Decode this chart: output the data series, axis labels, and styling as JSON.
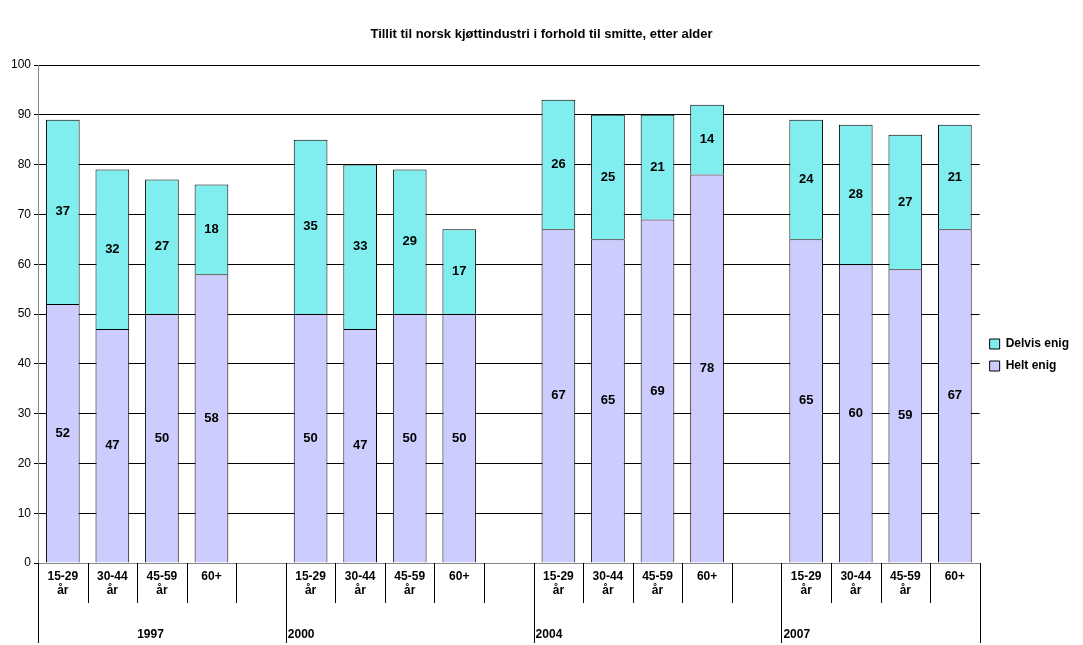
{
  "chart_data": {
    "type": "bar",
    "title": "Tillit til norsk kjøttindustri i forhold til smitte, etter alder",
    "categories": [
      "15-29 år",
      "30-44 år",
      "45-59 år",
      "60+",
      null,
      "15-29 år",
      "30-44 år",
      "45-59 år",
      "60+",
      null,
      "15-29 år",
      "30-44 år",
      "45-59 år",
      "60+",
      null,
      "15-29 år",
      "30-44 år",
      "45-59 år",
      "60+"
    ],
    "series": [
      {
        "name": "Helt enig",
        "color": "#ccccff",
        "values": [
          52,
          47,
          50,
          58,
          null,
          50,
          47,
          50,
          50,
          null,
          67,
          65,
          69,
          78,
          null,
          65,
          60,
          59,
          67
        ]
      },
      {
        "name": "Delvis enig",
        "color": "#80eeee",
        "values": [
          37,
          32,
          27,
          18,
          null,
          35,
          33,
          29,
          17,
          null,
          26,
          25,
          21,
          14,
          null,
          24,
          28,
          27,
          21
        ]
      }
    ],
    "stacked": true,
    "ylim": [
      0,
      100
    ],
    "yticks": [
      0,
      10,
      20,
      30,
      40,
      50,
      60,
      70,
      80,
      90,
      100
    ],
    "grid": "y",
    "legend": "right",
    "data_labels": true,
    "annotations": [
      "1997",
      "2000",
      "2004",
      "2007"
    ]
  }
}
